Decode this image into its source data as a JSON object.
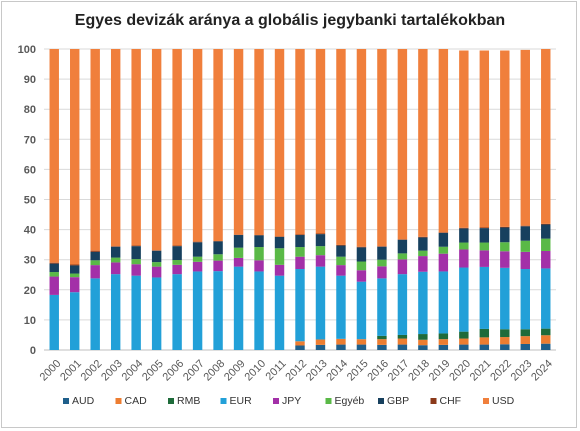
{
  "chart_data": {
    "type": "bar",
    "stacked": true,
    "title": "Egyes devizák aránya a globális jegybanki tartalékokban",
    "xlabel": "",
    "ylabel": "",
    "ylim": [
      0,
      100
    ],
    "yticks": [
      0,
      10,
      20,
      30,
      40,
      50,
      60,
      70,
      80,
      90,
      100
    ],
    "grid": true,
    "legend_position": "bottom",
    "categories": [
      "2000",
      "2001",
      "2002",
      "2003",
      "2004",
      "2005",
      "2006",
      "2007",
      "2008",
      "2009",
      "2010",
      "2011",
      "2012",
      "2013",
      "2014",
      "2015",
      "2016",
      "2017",
      "2018",
      "2019",
      "2020",
      "2021",
      "2022",
      "2023",
      "2024"
    ],
    "series": [
      {
        "name": "AUD",
        "color": "#1f5f8b",
        "values": [
          0,
          0,
          0,
          0,
          0,
          0,
          0,
          0,
          0,
          0,
          0,
          0,
          1.5,
          1.7,
          1.8,
          1.8,
          1.7,
          1.8,
          1.6,
          1.7,
          1.8,
          1.8,
          1.9,
          2.0,
          2.1
        ]
      },
      {
        "name": "CAD",
        "color": "#ed7d31",
        "values": [
          0,
          0,
          0,
          0,
          0,
          0,
          0,
          0,
          0,
          0,
          0,
          0,
          1.4,
          1.8,
          1.9,
          1.8,
          1.9,
          2.0,
          1.8,
          1.9,
          2.0,
          2.4,
          2.4,
          2.6,
          2.8
        ]
      },
      {
        "name": "RMB",
        "color": "#1e6b3a",
        "values": [
          0,
          0,
          0,
          0,
          0,
          0,
          0,
          0,
          0,
          0,
          0,
          0,
          0,
          0,
          0,
          0,
          1.1,
          1.2,
          1.9,
          1.9,
          2.3,
          2.8,
          2.6,
          2.3,
          2.2
        ]
      },
      {
        "name": "EUR",
        "color": "#22a0d8",
        "values": [
          18.3,
          19.2,
          23.8,
          25.2,
          24.7,
          24.1,
          25.2,
          26.1,
          26.2,
          27.7,
          26.1,
          24.7,
          24.0,
          24.2,
          21.0,
          19.1,
          19.1,
          20.2,
          20.7,
          20.6,
          21.3,
          20.6,
          20.4,
          20.0,
          20.0
        ]
      },
      {
        "name": "JPY",
        "color": "#a330a8",
        "values": [
          6.1,
          5.0,
          4.4,
          3.9,
          3.8,
          3.6,
          3.1,
          3.2,
          3.5,
          2.9,
          3.7,
          3.6,
          4.1,
          3.8,
          3.5,
          3.8,
          4.0,
          4.9,
          5.2,
          5.9,
          6.0,
          5.5,
          5.5,
          5.7,
          5.8
        ]
      },
      {
        "name": "Egyéb",
        "color": "#5ab947",
        "values": [
          1.5,
          1.2,
          1.6,
          1.6,
          1.7,
          1.5,
          1.6,
          1.7,
          2.1,
          3.4,
          4.4,
          5.5,
          3.2,
          3.0,
          2.8,
          2.9,
          2.2,
          2.0,
          1.8,
          2.3,
          2.3,
          2.6,
          3.0,
          3.7,
          4.1
        ]
      },
      {
        "name": "GBP",
        "color": "#17405e",
        "values": [
          2.8,
          2.7,
          2.8,
          3.6,
          4.3,
          3.8,
          4.6,
          4.8,
          4.3,
          4.2,
          3.9,
          3.8,
          4.0,
          4.0,
          3.7,
          4.7,
          4.3,
          4.5,
          4.4,
          4.6,
          4.7,
          4.8,
          4.9,
          4.8,
          4.7
        ]
      },
      {
        "name": "CHF",
        "color": "#8b3a1a",
        "values": [
          0.3,
          0.3,
          0.4,
          0.2,
          0.2,
          0.1,
          0.2,
          0.2,
          0.1,
          0.1,
          0.1,
          0.1,
          0.2,
          0.2,
          0.2,
          0.2,
          0.2,
          0.2,
          0.2,
          0.2,
          0.2,
          0.2,
          0.2,
          0.2,
          0.2
        ]
      },
      {
        "name": "USD",
        "color": "#f07f3c",
        "values": [
          71.0,
          71.6,
          67.0,
          65.5,
          65.3,
          66.9,
          65.3,
          64.0,
          63.8,
          61.7,
          61.8,
          62.3,
          61.6,
          61.3,
          65.1,
          65.7,
          65.5,
          63.2,
          62.4,
          60.9,
          58.9,
          58.8,
          58.6,
          58.4,
          58.1
        ]
      }
    ]
  }
}
